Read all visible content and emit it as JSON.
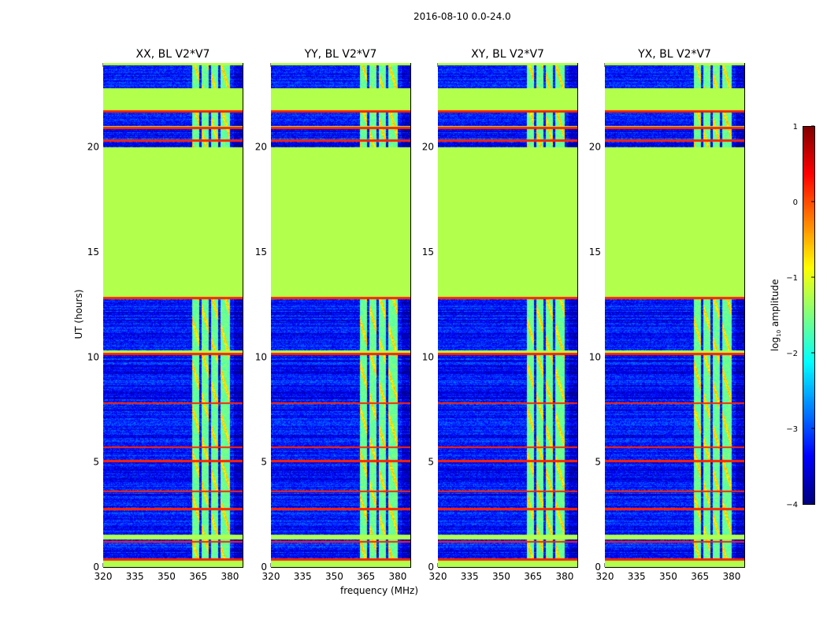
{
  "chart_data": {
    "type": "heatmap",
    "title": "2016-08-10 0.0-24.0",
    "xlabel": "frequency (MHz)",
    "ylabel": "UT (hours)",
    "xlim": [
      320,
      386
    ],
    "ylim": [
      0,
      24
    ],
    "xticks": [
      "320",
      "335",
      "350",
      "365",
      "380"
    ],
    "yticks": [
      "0",
      "5",
      "10",
      "15",
      "20"
    ],
    "panels": [
      {
        "title": "XX, BL V2*V7"
      },
      {
        "title": "YY, BL V2*V7"
      },
      {
        "title": "XY, BL V2*V7"
      },
      {
        "title": "YX, BL V2*V7"
      }
    ],
    "colorbar": {
      "label_prefix": "log",
      "label_sub": "10",
      "label_suffix": " amplitude",
      "range": [
        -4,
        1
      ],
      "ticks": [
        "−4",
        "−3",
        "−2",
        "−1",
        "0",
        "1"
      ],
      "colormap": "jet"
    },
    "flagged_hours": [
      [
        0,
        0.35
      ],
      [
        1.3,
        1.55
      ],
      [
        10.1,
        10.3
      ],
      [
        12.8,
        20.0
      ],
      [
        20.85,
        21.0
      ],
      [
        21.7,
        22.8
      ],
      [
        23.9,
        24
      ]
    ],
    "rfi_lines_hours": [
      0.35,
      1.2,
      2.75,
      3.6,
      5.05,
      5.7,
      7.8,
      10.15,
      12.8,
      20.3,
      20.9,
      21.7
    ],
    "rfi_band_mhz": [
      362,
      380
    ],
    "rfi_band_gaps_mhz": [
      366,
      370.5,
      375
    ],
    "background_level": -3.3,
    "flagged_level": -1.25,
    "rfi_band_level": -1.6
  }
}
